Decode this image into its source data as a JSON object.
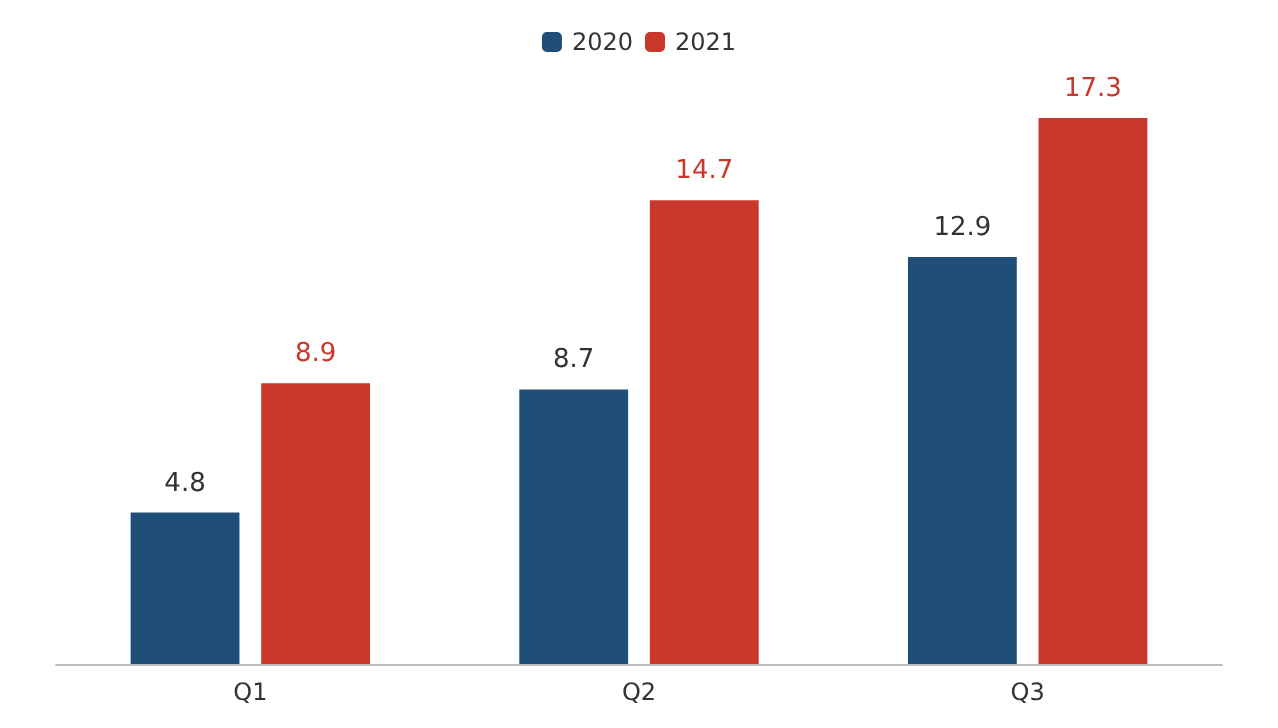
{
  "chart_data": {
    "type": "bar",
    "categories": [
      "Q1",
      "Q2",
      "Q3"
    ],
    "series": [
      {
        "name": "2020",
        "color": "#1f4e79",
        "values": [
          4.8,
          8.7,
          12.9
        ]
      },
      {
        "name": "2021",
        "color": "#c9382a",
        "values": [
          8.9,
          14.7,
          17.3
        ]
      }
    ],
    "data_labels": true,
    "legend": "top"
  }
}
